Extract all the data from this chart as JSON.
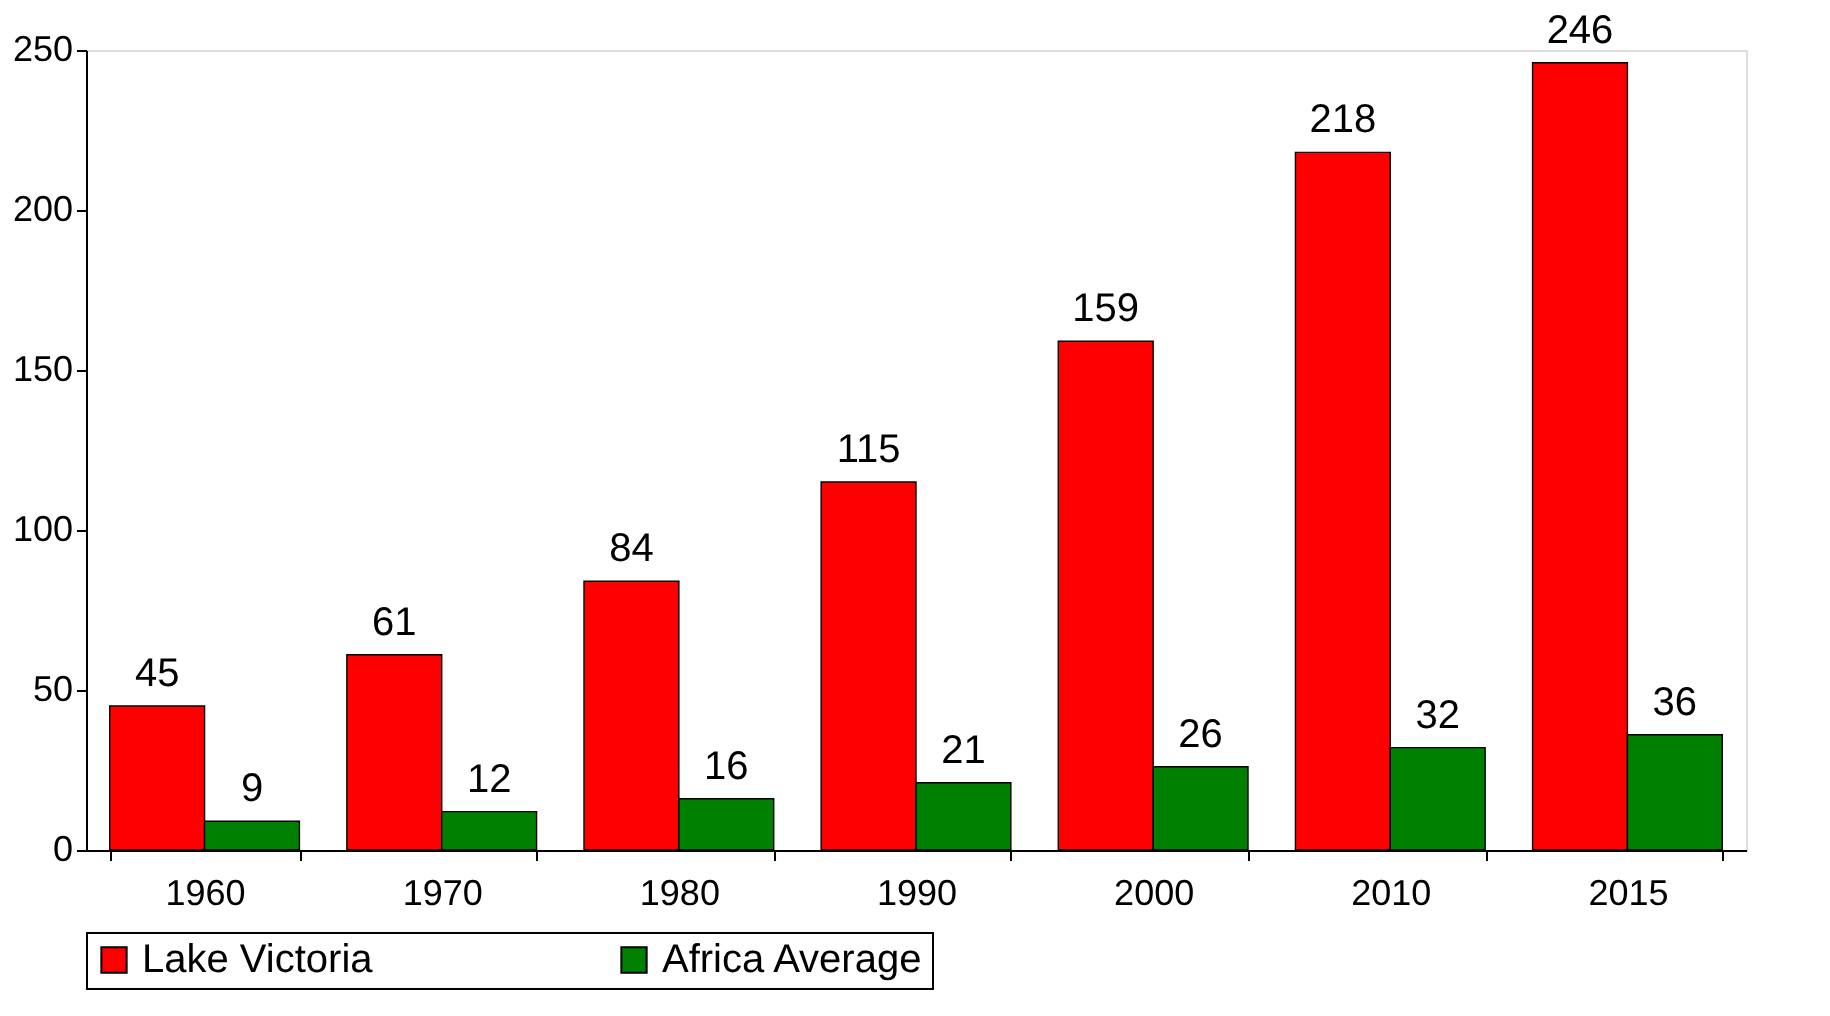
{
  "chart_data": {
    "type": "bar",
    "categories": [
      "1960",
      "1970",
      "1980",
      "1990",
      "2000",
      "2010",
      "2015"
    ],
    "series": [
      {
        "name": "Lake Victoria",
        "color": "#ff0000",
        "values": [
          45,
          61,
          84,
          115,
          159,
          218,
          246
        ]
      },
      {
        "name": "Africa Average",
        "color": "#008000",
        "values": [
          9,
          12,
          16,
          21,
          26,
          32,
          36
        ]
      }
    ],
    "ylim": [
      0,
      250
    ],
    "yticks": [
      0,
      50,
      100,
      150,
      200,
      250
    ],
    "grid": false,
    "legend": "bottom",
    "data_labels": true
  }
}
